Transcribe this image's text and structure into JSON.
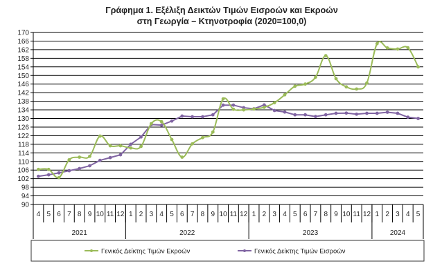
{
  "chart_data": {
    "type": "line",
    "title": [
      "Γράφημα 1. Εξέλιξη Δεικτών Τιμών Εισροών και Εκροών",
      "στη Γεωργία – Κτηνοτροφία (2020=100,0)"
    ],
    "xlabel": "",
    "ylabel": "",
    "ylim": [
      90,
      170
    ],
    "ystep": 4,
    "grid": true,
    "legend_position": "bottom",
    "months": [
      "4",
      "5",
      "6",
      "7",
      "8",
      "9",
      "10",
      "11",
      "12",
      "1",
      "2",
      "3",
      "4",
      "5",
      "6",
      "7",
      "8",
      "9",
      "10",
      "11",
      "12",
      "1",
      "2",
      "3",
      "4",
      "5",
      "6",
      "7",
      "8",
      "9",
      "10",
      "11",
      "12",
      "1",
      "2",
      "3",
      "4",
      "5"
    ],
    "years": [
      {
        "label": "2021",
        "count": 9
      },
      {
        "label": "2022",
        "count": 12
      },
      {
        "label": "2023",
        "count": 12
      },
      {
        "label": "2024",
        "count": 5
      }
    ],
    "series": [
      {
        "name": "Γενικός Δείκτης Τιμών Εκροών",
        "color": "#9bbb59",
        "values": [
          106.3,
          106.3,
          102.5,
          110.8,
          112,
          112.4,
          121.8,
          117.3,
          117.3,
          116.3,
          117,
          127.6,
          128.5,
          120.2,
          112,
          118.2,
          121.1,
          123.7,
          139.1,
          134.3,
          134,
          134.4,
          135.2,
          137.3,
          141,
          145,
          146,
          149.2,
          159.2,
          148.5,
          144.7,
          143.7,
          146.5,
          164.8,
          162.8,
          162.3,
          162.9,
          154
        ]
      },
      {
        "name": "Γενικός Δείκτης Τιμών Εισροών",
        "color": "#8064a2",
        "values": [
          103.1,
          103.8,
          104.7,
          105.7,
          106.7,
          108,
          110.5,
          111.8,
          113.1,
          118,
          121.4,
          127.2,
          126.9,
          128.8,
          131.1,
          130.8,
          130.8,
          131.7,
          136.2,
          136.2,
          135,
          134.5,
          136.3,
          133.7,
          133,
          131.7,
          131.7,
          130.9,
          131.7,
          132.4,
          132.5,
          132,
          132.4,
          132.4,
          132.9,
          132.4,
          130.6,
          130
        ]
      }
    ]
  }
}
